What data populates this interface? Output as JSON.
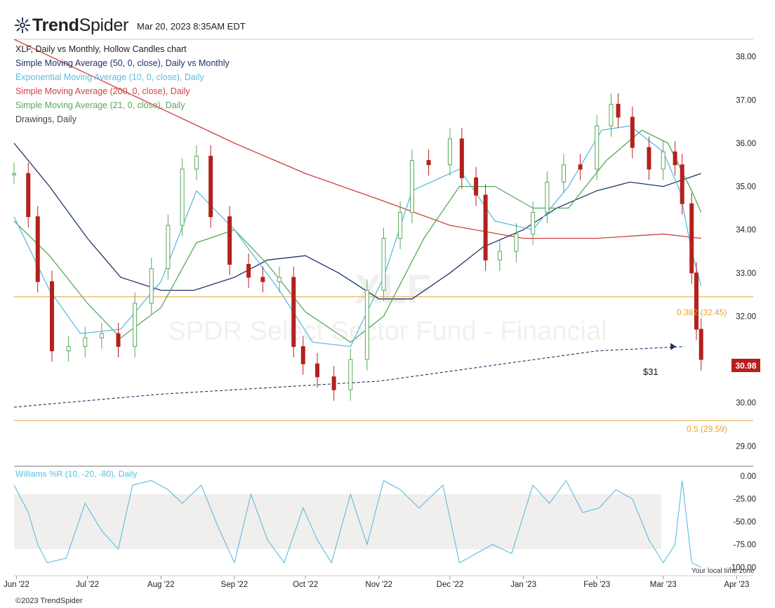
{
  "brand": {
    "name_bold": "Trend",
    "name_light": "Spider",
    "timestamp": "Mar 20, 2023 8:35AM EDT"
  },
  "legend": {
    "chart_title": "XLF, Daily vs Monthly, Hollow Candles chart",
    "items": [
      {
        "label": "Simple Moving Average (50, 0, close), Daily vs Monthly",
        "color": "#1c3466"
      },
      {
        "label": "Exponential Moving Average (10, 0, close), Daily",
        "color": "#5bbde0"
      },
      {
        "label": "Simple Moving Average (200, 0, close), Daily",
        "color": "#d04040"
      },
      {
        "label": "Simple Moving Average (21, 0, close), Daily",
        "color": "#5aa85a"
      },
      {
        "label": "Drawings, Daily",
        "color": "#444444"
      }
    ]
  },
  "watermark": {
    "symbol": "XLF",
    "name": "SPDR Select Sector Fund - Financial"
  },
  "annotations": {
    "fib_0382": "0.382 (32.45)",
    "fib_05": "0.5 (29.59)",
    "support_label": "$31",
    "last_price": "30.98"
  },
  "oscillator": {
    "title": "Williams %R (10, -20, -80), Daily"
  },
  "footer": {
    "copyright": "©2023 TrendSpider",
    "timezone": "Your local time zone"
  },
  "colors": {
    "up": "#5aa85a",
    "down": "#b5201d",
    "ema10": "#5bbde0",
    "sma200": "#d04040",
    "sma21": "#5aa85a",
    "sma50": "#1c3466",
    "fib": "#e8a030",
    "wr": "#5bbde0"
  },
  "chart_data": [
    {
      "type": "candlestick",
      "panel": "price",
      "ylim": [
        28.6,
        38.4
      ],
      "y_ticks": [
        "38.00",
        "37.00",
        "36.00",
        "35.00",
        "34.00",
        "33.00",
        "32.00",
        "30.00",
        "29.00"
      ],
      "x_ticks": [
        "Jun '22",
        "Jul '22",
        "Aug '22",
        "Sep '22",
        "Oct '22",
        "Nov '22",
        "Dec '22",
        "Jan '23",
        "Feb '23",
        "Mar '23",
        "Apr '23"
      ],
      "x_range": [
        "2022-05-31",
        "2023-04-08"
      ],
      "series": [
        {
          "name": "XLF",
          "kind": "close",
          "x": [
            "2022-05-31",
            "2022-06-06",
            "2022-06-10",
            "2022-06-16",
            "2022-06-23",
            "2022-06-30",
            "2022-07-07",
            "2022-07-14",
            "2022-07-21",
            "2022-07-28",
            "2022-08-04",
            "2022-08-10",
            "2022-08-16",
            "2022-08-22",
            "2022-08-30",
            "2022-09-07",
            "2022-09-13",
            "2022-09-20",
            "2022-09-26",
            "2022-09-30",
            "2022-10-06",
            "2022-10-13",
            "2022-10-20",
            "2022-10-27",
            "2022-11-03",
            "2022-11-10",
            "2022-11-15",
            "2022-11-22",
            "2022-12-01",
            "2022-12-06",
            "2022-12-12",
            "2022-12-16",
            "2022-12-22",
            "2022-12-29",
            "2023-01-05",
            "2023-01-11",
            "2023-01-18",
            "2023-01-25",
            "2023-02-01",
            "2023-02-07",
            "2023-02-10",
            "2023-02-16",
            "2023-02-23",
            "2023-03-01",
            "2023-03-06",
            "2023-03-09",
            "2023-03-13",
            "2023-03-15",
            "2023-03-17"
          ],
          "values": [
            35.3,
            34.3,
            32.8,
            31.2,
            31.3,
            31.5,
            31.6,
            31.3,
            32.3,
            33.1,
            34.1,
            35.4,
            35.7,
            34.3,
            33.2,
            32.9,
            32.8,
            32.9,
            31.3,
            30.9,
            30.6,
            30.3,
            31.0,
            32.6,
            33.8,
            34.4,
            35.6,
            35.5,
            36.1,
            35.2,
            34.8,
            33.3,
            33.5,
            33.9,
            34.4,
            35.1,
            35.5,
            35.4,
            36.4,
            36.9,
            36.6,
            35.9,
            35.4,
            35.8,
            35.5,
            34.6,
            33.0,
            31.7,
            31.0
          ]
        },
        {
          "name": "EMA 10",
          "x": [
            "2022-05-31",
            "2022-06-15",
            "2022-06-28",
            "2022-07-15",
            "2022-08-01",
            "2022-08-16",
            "2022-09-01",
            "2022-09-20",
            "2022-10-04",
            "2022-10-20",
            "2022-11-03",
            "2022-11-15",
            "2022-12-05",
            "2022-12-20",
            "2023-01-05",
            "2023-01-20",
            "2023-02-03",
            "2023-02-15",
            "2023-03-01",
            "2023-03-08",
            "2023-03-13",
            "2023-03-17"
          ],
          "values": [
            34.3,
            32.6,
            31.6,
            31.7,
            32.8,
            34.9,
            34.0,
            32.6,
            31.4,
            31.3,
            32.9,
            34.9,
            35.4,
            34.2,
            34.0,
            35.0,
            36.3,
            36.4,
            35.8,
            34.9,
            33.5,
            32.7
          ]
        },
        {
          "name": "SMA 21",
          "x": [
            "2022-05-31",
            "2022-06-15",
            "2022-07-01",
            "2022-07-15",
            "2022-08-01",
            "2022-08-16",
            "2022-09-01",
            "2022-09-15",
            "2022-10-01",
            "2022-10-20",
            "2022-11-03",
            "2022-11-20",
            "2022-12-05",
            "2022-12-20",
            "2023-01-05",
            "2023-01-20",
            "2023-02-05",
            "2023-02-20",
            "2023-03-03",
            "2023-03-13",
            "2023-03-17"
          ],
          "values": [
            34.2,
            33.4,
            32.3,
            31.5,
            32.2,
            33.7,
            34.0,
            33.2,
            32.1,
            31.4,
            32.0,
            33.8,
            35.0,
            35.0,
            34.5,
            34.5,
            35.6,
            36.3,
            36.0,
            34.9,
            34.4
          ]
        },
        {
          "name": "SMA 200",
          "x": [
            "2022-05-31",
            "2022-07-01",
            "2022-08-01",
            "2022-09-01",
            "2022-10-01",
            "2022-11-01",
            "2022-12-01",
            "2023-01-01",
            "2023-02-01",
            "2023-03-01",
            "2023-03-17"
          ],
          "values": [
            38.4,
            37.6,
            36.8,
            36.0,
            35.3,
            34.7,
            34.1,
            33.8,
            33.8,
            33.9,
            33.8
          ]
        },
        {
          "name": "SMA 50",
          "x": [
            "2022-05-31",
            "2022-06-15",
            "2022-07-01",
            "2022-07-15",
            "2022-08-01",
            "2022-08-15",
            "2022-09-01",
            "2022-09-15",
            "2022-10-01",
            "2022-10-15",
            "2022-11-01",
            "2022-11-15",
            "2022-12-01",
            "2022-12-15",
            "2023-01-01",
            "2023-01-15",
            "2023-02-01",
            "2023-02-15",
            "2023-03-01",
            "2023-03-17"
          ],
          "values": [
            36.0,
            35.0,
            33.8,
            32.9,
            32.6,
            32.6,
            32.9,
            33.3,
            33.4,
            33.0,
            32.4,
            32.4,
            33.0,
            33.6,
            34.0,
            34.5,
            34.9,
            35.1,
            35.0,
            35.3
          ]
        },
        {
          "name": "SMA 50 Monthly",
          "x": [
            "2022-05-31",
            "2022-08-01",
            "2022-11-01",
            "2023-02-01",
            "2023-03-10"
          ],
          "values": [
            29.9,
            30.2,
            30.5,
            31.2,
            31.3
          ]
        }
      ],
      "levels": [
        {
          "name": "0.382",
          "label": "0.382 (32.45)",
          "y": 32.45
        },
        {
          "name": "0.5",
          "label": "0.5 (29.59)",
          "y": 29.59
        },
        {
          "name": "support",
          "label": "$31",
          "y": 31.0
        }
      ],
      "last": 30.98
    },
    {
      "type": "line",
      "panel": "williams_r",
      "ylim": [
        -100,
        0
      ],
      "y_ticks": [
        "0.00",
        "-25.00",
        "-50.00",
        "-75.00",
        "-100.00"
      ],
      "bands": [
        -20,
        -80
      ],
      "series": [
        {
          "name": "Williams %R",
          "x": [
            "2022-05-31",
            "2022-06-06",
            "2022-06-10",
            "2022-06-14",
            "2022-06-22",
            "2022-06-30",
            "2022-07-07",
            "2022-07-14",
            "2022-07-20",
            "2022-07-28",
            "2022-08-04",
            "2022-08-10",
            "2022-08-18",
            "2022-08-25",
            "2022-09-01",
            "2022-09-08",
            "2022-09-15",
            "2022-09-22",
            "2022-09-30",
            "2022-10-06",
            "2022-10-12",
            "2022-10-20",
            "2022-10-27",
            "2022-11-03",
            "2022-11-10",
            "2022-11-18",
            "2022-11-28",
            "2022-12-05",
            "2022-12-12",
            "2022-12-19",
            "2022-12-27",
            "2023-01-05",
            "2023-01-12",
            "2023-01-19",
            "2023-01-26",
            "2023-02-02",
            "2023-02-09",
            "2023-02-16",
            "2023-02-23",
            "2023-03-01",
            "2023-03-06",
            "2023-03-09",
            "2023-03-13",
            "2023-03-17"
          ],
          "values": [
            -10,
            -40,
            -75,
            -95,
            -90,
            -30,
            -60,
            -80,
            -10,
            -5,
            -15,
            -30,
            -10,
            -55,
            -95,
            -20,
            -70,
            -95,
            -35,
            -70,
            -95,
            -20,
            -75,
            -5,
            -15,
            -35,
            -10,
            -95,
            -85,
            -75,
            -85,
            -10,
            -30,
            -5,
            -40,
            -35,
            -15,
            -25,
            -70,
            -95,
            -75,
            -5,
            -95,
            -100
          ]
        }
      ]
    }
  ]
}
